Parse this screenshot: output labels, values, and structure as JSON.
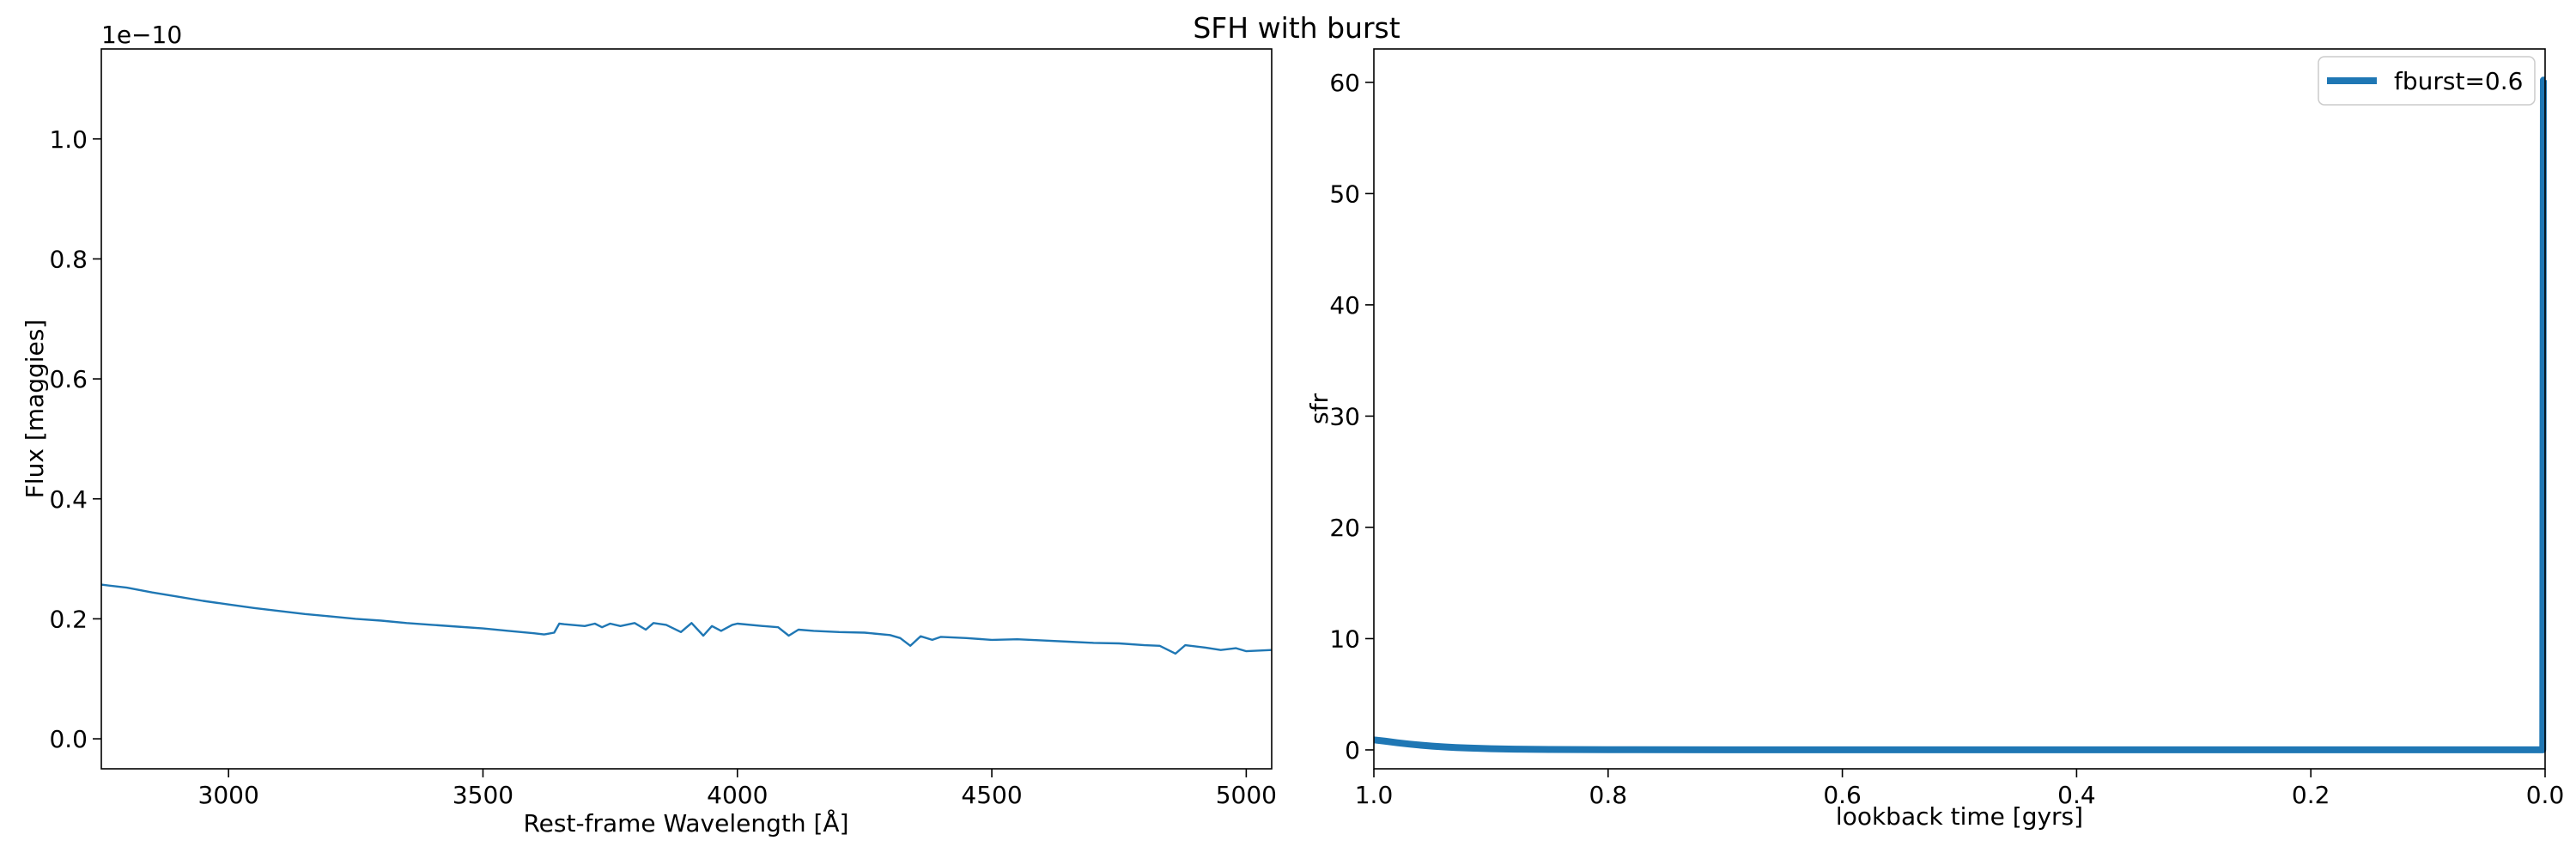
{
  "figure": {
    "suptitle": "SFH with burst"
  },
  "chart_data": [
    {
      "type": "line",
      "title": "",
      "xlabel": "Rest-frame Wavelength [Å]",
      "ylabel": "Flux [maggies]",
      "offset_text": "1e−10",
      "xlim": [
        2750,
        5050
      ],
      "ylim": [
        -0.05,
        1.15
      ],
      "y_scale_factor": 1e-10,
      "xticks": [
        3000,
        3500,
        4000,
        4500,
        5000
      ],
      "xtick_labels": [
        "3000",
        "3500",
        "4000",
        "4500",
        "5000"
      ],
      "yticks": [
        0.0,
        0.2,
        0.4,
        0.6,
        0.8,
        1.0
      ],
      "ytick_labels": [
        "0.0",
        "0.2",
        "0.4",
        "0.6",
        "0.8",
        "1.0"
      ],
      "grid": false,
      "color": "#1f77b4",
      "series": [
        {
          "x": [
            2750,
            2800,
            2850,
            2900,
            2950,
            3000,
            3050,
            3100,
            3150,
            3200,
            3250,
            3300,
            3350,
            3400,
            3450,
            3500,
            3550,
            3600,
            3620,
            3640,
            3650,
            3660,
            3700,
            3720,
            3734,
            3750,
            3770,
            3798,
            3820,
            3835,
            3860,
            3889,
            3910,
            3933,
            3950,
            3968,
            3990,
            4000,
            4050,
            4080,
            4101,
            4120,
            4150,
            4200,
            4250,
            4300,
            4320,
            4340,
            4360,
            4383,
            4400,
            4450,
            4500,
            4550,
            4600,
            4650,
            4700,
            4750,
            4800,
            4830,
            4861,
            4880,
            4920,
            4950,
            4980,
            5000,
            5050
          ],
          "y": [
            0.257,
            0.252,
            0.244,
            0.237,
            0.23,
            0.224,
            0.218,
            0.213,
            0.208,
            0.204,
            0.2,
            0.197,
            0.193,
            0.19,
            0.187,
            0.184,
            0.18,
            0.176,
            0.174,
            0.177,
            0.192,
            0.191,
            0.188,
            0.192,
            0.186,
            0.192,
            0.188,
            0.193,
            0.182,
            0.193,
            0.19,
            0.178,
            0.193,
            0.172,
            0.188,
            0.18,
            0.19,
            0.192,
            0.188,
            0.186,
            0.172,
            0.182,
            0.18,
            0.178,
            0.177,
            0.173,
            0.168,
            0.155,
            0.171,
            0.165,
            0.17,
            0.168,
            0.165,
            0.166,
            0.164,
            0.162,
            0.16,
            0.159,
            0.156,
            0.155,
            0.142,
            0.156,
            0.152,
            0.148,
            0.151,
            0.146,
            0.148
          ]
        }
      ]
    },
    {
      "type": "line",
      "title": "",
      "xlabel": "lookback time [gyrs]",
      "ylabel": "sfr",
      "xlim": [
        1.0,
        0.0
      ],
      "ylim": [
        -1.7,
        63
      ],
      "xticks": [
        1.0,
        0.8,
        0.6,
        0.4,
        0.2,
        0.0
      ],
      "xtick_labels": [
        "1.0",
        "0.8",
        "0.6",
        "0.4",
        "0.2",
        "0.0"
      ],
      "yticks": [
        0,
        10,
        20,
        30,
        40,
        50,
        60
      ],
      "ytick_labels": [
        "0",
        "10",
        "20",
        "30",
        "40",
        "50",
        "60"
      ],
      "grid": false,
      "legend_position": "top-right",
      "color": "#1f77b4",
      "series": [
        {
          "name": "fburst=0.6",
          "x": [
            1.0,
            0.99,
            0.98,
            0.97,
            0.96,
            0.95,
            0.94,
            0.93,
            0.92,
            0.9,
            0.88,
            0.85,
            0.8,
            0.7,
            0.6,
            0.5,
            0.4,
            0.3,
            0.2,
            0.1,
            0.01,
            0.002,
            0.0015,
            0.001,
            0.0
          ],
          "y": [
            0.9,
            0.78,
            0.64,
            0.52,
            0.42,
            0.34,
            0.27,
            0.21,
            0.17,
            0.11,
            0.07,
            0.04,
            0.02,
            0.01,
            0.01,
            0.01,
            0.01,
            0.01,
            0.01,
            0.01,
            0.01,
            0.01,
            60.2,
            60.2,
            60.2
          ]
        }
      ]
    }
  ]
}
